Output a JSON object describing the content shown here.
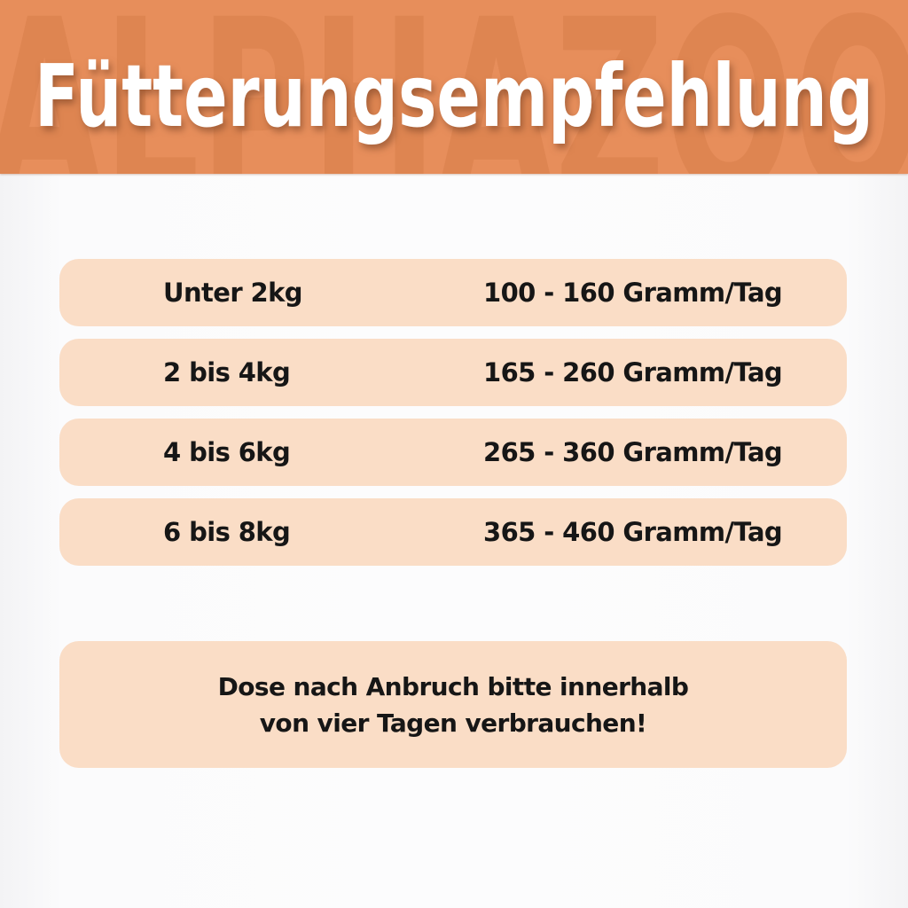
{
  "header": {
    "title": "Fütterungsempfehlung",
    "watermark": "ALPHAZOO",
    "bg_color": "#E78E5B",
    "watermark_color": "#C9703C",
    "title_color": "#FFFFFF"
  },
  "table": {
    "row_bg_color": "#FADDC6",
    "text_color": "#161616",
    "rows": [
      {
        "weight": "Unter 2kg",
        "amount": "100 - 160 Gramm/Tag"
      },
      {
        "weight": "2 bis 4kg",
        "amount": "165 - 260 Gramm/Tag"
      },
      {
        "weight": "4 bis 6kg",
        "amount": "265 - 360 Gramm/Tag"
      },
      {
        "weight": "6 bis 8kg",
        "amount": "365 - 460 Gramm/Tag"
      }
    ]
  },
  "note": {
    "line1": "Dose nach Anbruch bitte innerhalb",
    "line2": "von vier Tagen verbrauchen!",
    "bg_color": "#FADDC6"
  }
}
